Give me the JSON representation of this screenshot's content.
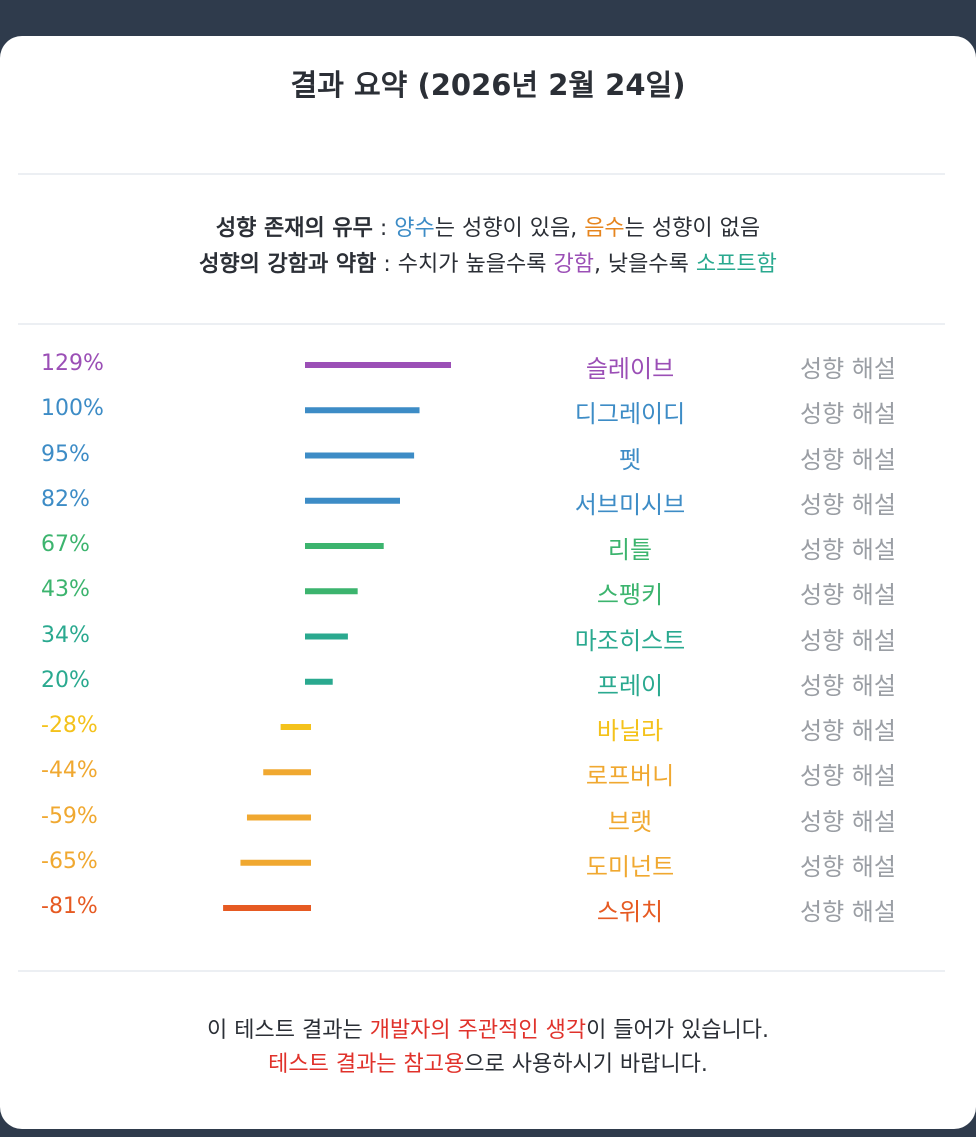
{
  "title": "결과 요약 (2026년 2월 24일)",
  "legend": {
    "line1": {
      "label": "성향 존재의 유무",
      "sep": " : ",
      "pos_word": "양수",
      "pos_rest": "는 성향이 있음, ",
      "neg_word": "음수",
      "neg_rest": "는 성향이 없음"
    },
    "line2": {
      "label": "성향의 강함과 약함",
      "sep": " : ",
      "mid": "수치가 높을수록 ",
      "strong_word": "강함",
      "mid2": ", 낮을수록 ",
      "soft_word": "소프트함"
    }
  },
  "colors": {
    "positive": "#3d8cc6",
    "negative": "#e6851e",
    "strong": "#9b4fb6",
    "soft": "#2aa98f",
    "red": "#e0322b",
    "text": "#2b2f36",
    "muted": "#9a9ea4"
  },
  "link_label": "성향 해설",
  "chart_data": {
    "type": "bar",
    "orientation": "horizontal",
    "categories": [
      "슬레이브",
      "디그레이디",
      "펫",
      "서브미시브",
      "리틀",
      "스팽키",
      "마조히스트",
      "프레이",
      "바닐라",
      "로프버니",
      "브랫",
      "도미넌트",
      "스위치"
    ],
    "values": [
      129,
      100,
      95,
      82,
      67,
      43,
      34,
      20,
      -28,
      -44,
      -59,
      -65,
      -81
    ],
    "value_labels": [
      "129%",
      "100%",
      "95%",
      "82%",
      "67%",
      "43%",
      "34%",
      "20%",
      "-28%",
      "-44%",
      "-59%",
      "-65%",
      "-81%"
    ],
    "colors": [
      "#9b4fb6",
      "#3d8cc6",
      "#3d8cc6",
      "#3d8cc6",
      "#3cb46e",
      "#3cb46e",
      "#2aa98f",
      "#2aa98f",
      "#f4c21b",
      "#f0a830",
      "#f0a830",
      "#f0a830",
      "#e65a22"
    ],
    "unit": "%"
  },
  "footer": {
    "line1_a": "이 테스트 결과는 ",
    "line1_b": "개발자의 주관적인 생각",
    "line1_c": "이 들어가 있습니다.",
    "line2_a": "테스트 결과는 참고용",
    "line2_b": "으로 사용하시기 바랍니다."
  }
}
